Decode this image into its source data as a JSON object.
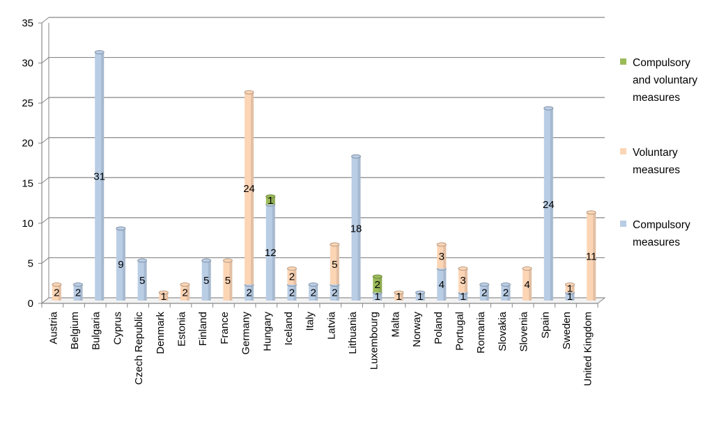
{
  "chart_data": {
    "type": "bar",
    "stacked": true,
    "title": "",
    "xlabel": "",
    "ylabel": "",
    "ylim": [
      0,
      35
    ],
    "yticks": [
      0,
      5,
      10,
      15,
      20,
      25,
      30,
      35
    ],
    "grid": true,
    "legend_position": "right",
    "categories": [
      "Austria",
      "Belgium",
      "Bulgaria",
      "Cyprus",
      "Czech Republic",
      "Denmark",
      "Estonia",
      "Finland",
      "France",
      "Germany",
      "Hungary",
      "Iceland",
      "Italy",
      "Latvia",
      "Lithuania",
      "Luxembourg",
      "Malta",
      "Norway",
      "Poland",
      "Portugal",
      "Romania",
      "Slovakia",
      "Slovenia",
      "Spain",
      "Sweden",
      "United Kingdom"
    ],
    "series": [
      {
        "name": "Compulsory measures",
        "color": "#b9cde5",
        "values": [
          0,
          2,
          31,
          9,
          5,
          0,
          0,
          5,
          0,
          2,
          12,
          2,
          2,
          2,
          18,
          1,
          0,
          1,
          4,
          1,
          2,
          2,
          0,
          24,
          1,
          0
        ],
        "labels": [
          "",
          "2",
          "31",
          "9",
          "5",
          "",
          "",
          "5",
          "",
          "2",
          "12",
          "2",
          "2",
          "2",
          "18",
          "1",
          "",
          "1",
          "4",
          "1",
          "2",
          "2",
          "",
          "24",
          "1",
          ""
        ]
      },
      {
        "name": "Voluntary measures",
        "color": "#fcd5b5",
        "values": [
          2,
          0,
          0,
          0,
          0,
          1,
          2,
          0,
          5,
          24,
          0,
          2,
          0,
          5,
          0,
          0,
          1,
          0,
          3,
          3,
          0,
          0,
          4,
          0,
          1,
          11
        ],
        "labels": [
          "2",
          "",
          "",
          "",
          "",
          "1",
          "2",
          "",
          "5",
          "24",
          "",
          "2",
          "",
          "5",
          "",
          "",
          "1",
          "",
          "3",
          "3",
          "",
          "",
          "4",
          "",
          "1",
          "11"
        ]
      },
      {
        "name": "Compulsory and voluntary measures",
        "color": "#9bbb59",
        "values": [
          0,
          0,
          0,
          0,
          0,
          0,
          0,
          0,
          0,
          0,
          1,
          0,
          0,
          0,
          0,
          2,
          0,
          0,
          0,
          0,
          0,
          0,
          0,
          0,
          0,
          0
        ],
        "labels": [
          "",
          "",
          "",
          "",
          "",
          "",
          "",
          "",
          "",
          "",
          "1",
          "",
          "",
          "",
          "",
          "2",
          "",
          "",
          "",
          "",
          "",
          "",
          "",
          "",
          "",
          ""
        ]
      }
    ]
  },
  "legend": {
    "items": [
      {
        "lines": [
          "Compulsory",
          "and voluntary",
          "measures"
        ],
        "color": "#9bbb59"
      },
      {
        "lines": [
          "Voluntary",
          "measures"
        ],
        "color": "#fcd5b5"
      },
      {
        "lines": [
          "Compulsory",
          "measures"
        ],
        "color": "#b9cde5"
      }
    ]
  }
}
